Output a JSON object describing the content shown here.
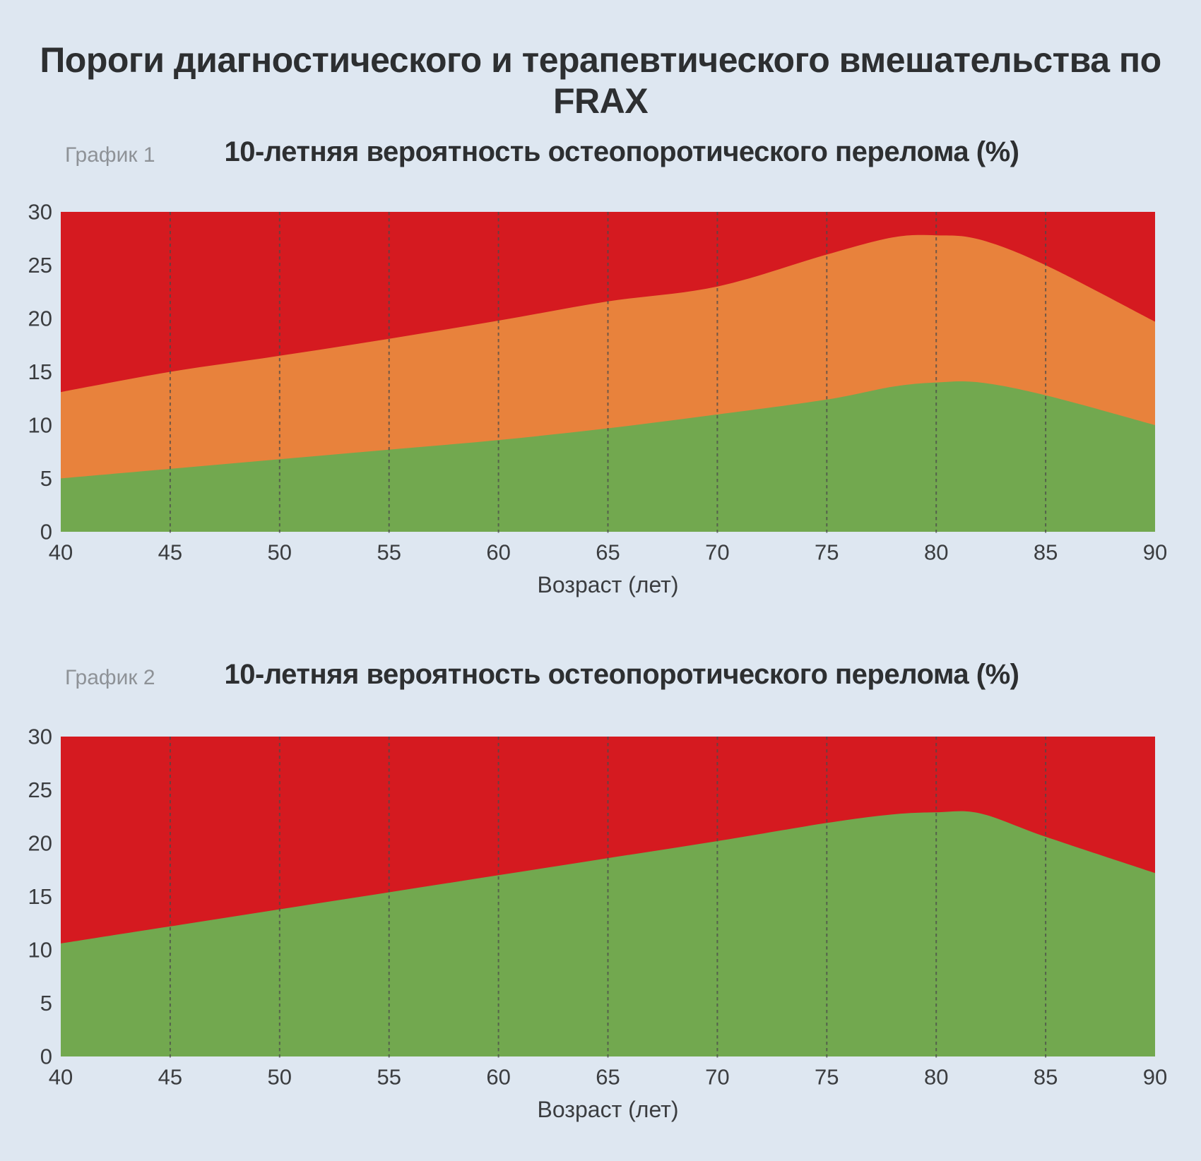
{
  "page": {
    "title": "Пороги диагностического и терапевтического вмешательства по FRAX",
    "background": "#dee7f1"
  },
  "colors": {
    "red": "#d51a20",
    "orange": "#e8823c",
    "green": "#72a84f",
    "grid": "#4a4a4a",
    "tick_text": "#3b3d40",
    "heading_text": "#2d2f31",
    "muted_label": "#8e9297"
  },
  "chart_data": [
    {
      "type": "area",
      "label": "График 1",
      "title": "10-летняя вероятность остеопоротического перелома (%)",
      "xlabel": "Возраст (лет)",
      "xlim": [
        40,
        90
      ],
      "ylim": [
        0,
        30
      ],
      "x": [
        40,
        45,
        50,
        55,
        60,
        65,
        70,
        75,
        78,
        80,
        82,
        85,
        90
      ],
      "xticks": [
        40,
        45,
        50,
        55,
        60,
        65,
        70,
        75,
        80,
        85,
        90
      ],
      "yticks": [
        0,
        5,
        10,
        15,
        20,
        25,
        30
      ],
      "gridlines": [
        45,
        50,
        55,
        60,
        65,
        70,
        75,
        80,
        85
      ],
      "grid_on": true,
      "legend": "none",
      "bands": [
        {
          "name": "low-risk-green",
          "color": "green",
          "values": [
            5,
            5.9,
            6.8,
            7.7,
            8.6,
            9.7,
            11,
            12.4,
            13.6,
            14,
            14,
            12.8,
            10
          ]
        },
        {
          "name": "medium-risk-orange",
          "color": "orange",
          "values": [
            13.1,
            15,
            16.5,
            18.1,
            19.8,
            21.6,
            23,
            26,
            27.6,
            27.8,
            27.4,
            25,
            19.7
          ]
        },
        {
          "name": "high-risk-red",
          "color": "red",
          "fill_to_top": true
        }
      ]
    },
    {
      "type": "area",
      "label": "График 2",
      "title": "10-летняя вероятность остеопоротического перелома (%)",
      "xlabel": "Возраст (лет)",
      "xlim": [
        40,
        90
      ],
      "ylim": [
        0,
        30
      ],
      "x": [
        40,
        45,
        50,
        55,
        60,
        65,
        70,
        75,
        78,
        80,
        82,
        85,
        90
      ],
      "xticks": [
        40,
        45,
        50,
        55,
        60,
        65,
        70,
        75,
        80,
        85,
        90
      ],
      "yticks": [
        0,
        5,
        10,
        15,
        20,
        25,
        30
      ],
      "gridlines": [
        45,
        50,
        55,
        60,
        65,
        70,
        75,
        80,
        85
      ],
      "grid_on": true,
      "legend": "none",
      "bands": [
        {
          "name": "low-risk-green",
          "color": "green",
          "values": [
            10.6,
            12.2,
            13.8,
            15.4,
            17,
            18.6,
            20.2,
            21.9,
            22.7,
            22.9,
            22.8,
            20.6,
            17.2
          ]
        },
        {
          "name": "high-risk-red",
          "color": "red",
          "fill_to_top": true
        }
      ]
    }
  ]
}
